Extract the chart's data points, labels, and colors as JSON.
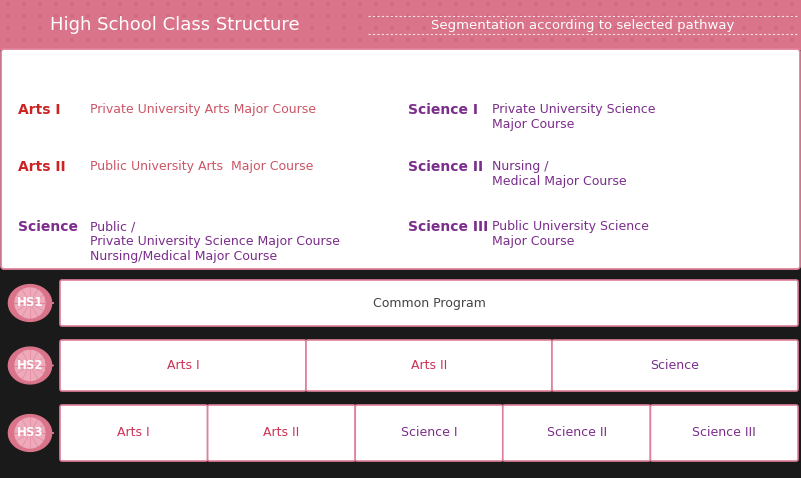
{
  "title": "High School Class Structure",
  "subtitle": "Segmentation according to selected pathway",
  "header_bg": "#d9748a",
  "header_text_color": "#ffffff",
  "main_bg": "#1a1a1a",
  "info_box_border": "#e0809a",
  "info_entries_left": [
    {
      "label": "Arts I",
      "label_color": "#cc2222",
      "desc": "Private University Arts Major Course",
      "desc_color": "#cc5566"
    },
    {
      "label": "Arts II",
      "label_color": "#cc2222",
      "desc": "Public University Arts  Major Course",
      "desc_color": "#cc5566"
    },
    {
      "label": "Science",
      "label_color": "#7b2d8b",
      "desc": "Public /\nPrivate University Science Major Course\nNursing/Medical Major Course",
      "desc_color": "#7b2d8b"
    }
  ],
  "info_entries_right": [
    {
      "label": "Science I",
      "label_color": "#7b2d8b",
      "desc": "Private University Science\nMajor Course",
      "desc_color": "#7b2d8b"
    },
    {
      "label": "Science II",
      "label_color": "#7b2d8b",
      "desc": "Nursing /\nMedical Major Course",
      "desc_color": "#7b2d8b"
    },
    {
      "label": "Science III",
      "label_color": "#7b2d8b",
      "desc": "Public University Science\nMajor Course",
      "desc_color": "#7b2d8b"
    }
  ],
  "hs_circle_bg": "#d9748a",
  "hs_circle_inner": "#eeaabb",
  "hs1_box_label": "Common Program",
  "hs1_box_color": "#444444",
  "hs2_boxes": [
    {
      "label": "Arts I",
      "color": "#cc3355"
    },
    {
      "label": "Arts II",
      "color": "#cc3355"
    },
    {
      "label": "Science",
      "color": "#7b2d8b"
    }
  ],
  "hs3_boxes": [
    {
      "label": "Arts I",
      "color": "#cc3355"
    },
    {
      "label": "Arts II",
      "color": "#cc3355"
    },
    {
      "label": "Science I",
      "color": "#7b2d8b"
    },
    {
      "label": "Science II",
      "color": "#7b2d8b"
    },
    {
      "label": "Science III",
      "color": "#7b2d8b"
    }
  ],
  "box_border": "#e0809a",
  "box_bg": "#ffffff"
}
